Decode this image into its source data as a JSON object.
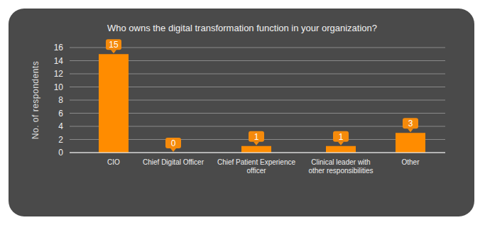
{
  "chart_data": {
    "type": "bar",
    "title": "Who owns the digital transformation function in your organization?",
    "y_label": "No. of respondents",
    "categories": [
      "CIO",
      "Chief Digital Officer",
      "Chief Patient Experience officer",
      "Clinical leader with other responsibilities",
      "Other"
    ],
    "values": [
      15,
      0,
      1,
      1,
      3
    ],
    "color": "#ff8c00",
    "ylim": [
      0,
      16
    ],
    "yticks": [
      0,
      2,
      4,
      6,
      8,
      10,
      12,
      14,
      16
    ],
    "grid": true,
    "data_labels": true
  }
}
